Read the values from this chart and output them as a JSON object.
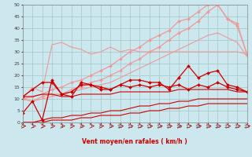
{
  "title": "",
  "xlabel": "Vent moyen/en rafales ( km/h )",
  "xlim": [
    0,
    23
  ],
  "ylim": [
    0,
    50
  ],
  "bg_color": "#cce8ee",
  "grid_color": "#aacccc",
  "series": [
    {
      "label": "pink_flat",
      "x": [
        0,
        1,
        2,
        3,
        4,
        5,
        6,
        7,
        8,
        9,
        10,
        11,
        12,
        13,
        14,
        15,
        16,
        17,
        18,
        19,
        20,
        21,
        22,
        23
      ],
      "y": [
        10,
        15,
        13,
        33,
        34,
        32,
        31,
        29,
        30,
        32,
        30,
        31,
        30,
        30,
        30,
        30,
        30,
        30,
        30,
        30,
        30,
        30,
        30,
        29
      ],
      "color": "#ee9999",
      "marker": null,
      "lw": 0.8,
      "ms": 0,
      "alpha": 1.0
    },
    {
      "label": "pink_upper1",
      "x": [
        0,
        1,
        2,
        3,
        4,
        5,
        6,
        7,
        8,
        9,
        10,
        11,
        12,
        13,
        14,
        15,
        16,
        17,
        18,
        19,
        20,
        21,
        22,
        23
      ],
      "y": [
        10,
        11,
        12,
        14,
        15,
        17,
        18,
        20,
        22,
        24,
        27,
        30,
        32,
        35,
        37,
        39,
        43,
        44,
        47,
        50,
        50,
        44,
        42,
        29
      ],
      "color": "#ee9999",
      "marker": "D",
      "lw": 0.9,
      "ms": 2.0,
      "alpha": 1.0
    },
    {
      "label": "pink_upper2",
      "x": [
        0,
        1,
        2,
        3,
        4,
        5,
        6,
        7,
        8,
        9,
        10,
        11,
        12,
        13,
        14,
        15,
        16,
        17,
        18,
        19,
        20,
        21,
        22,
        23
      ],
      "y": [
        10,
        9,
        11,
        12,
        12,
        14,
        15,
        17,
        18,
        20,
        22,
        25,
        27,
        30,
        32,
        35,
        38,
        40,
        43,
        47,
        50,
        44,
        41,
        29
      ],
      "color": "#ee9999",
      "marker": "D",
      "lw": 0.9,
      "ms": 2.0,
      "alpha": 1.0
    },
    {
      "label": "pink_lower",
      "x": [
        0,
        1,
        2,
        3,
        4,
        5,
        6,
        7,
        8,
        9,
        10,
        11,
        12,
        13,
        14,
        15,
        16,
        17,
        18,
        19,
        20,
        21,
        22,
        23
      ],
      "y": [
        10,
        9,
        10,
        11,
        12,
        13,
        14,
        15,
        16,
        17,
        19,
        21,
        23,
        25,
        27,
        29,
        31,
        33,
        35,
        37,
        38,
        36,
        34,
        28
      ],
      "color": "#ee9999",
      "marker": null,
      "lw": 0.8,
      "ms": 0,
      "alpha": 1.0
    },
    {
      "label": "red_jagged",
      "x": [
        0,
        1,
        2,
        3,
        4,
        5,
        6,
        7,
        8,
        9,
        10,
        11,
        12,
        13,
        14,
        15,
        16,
        17,
        18,
        19,
        20,
        21,
        22,
        23
      ],
      "y": [
        4,
        9,
        1,
        18,
        12,
        11,
        17,
        16,
        15,
        14,
        16,
        18,
        18,
        17,
        17,
        14,
        19,
        24,
        19,
        21,
        22,
        16,
        15,
        13
      ],
      "color": "#cc0000",
      "marker": "D",
      "lw": 0.9,
      "ms": 2.0,
      "alpha": 1.0
    },
    {
      "label": "red_mid",
      "x": [
        0,
        1,
        2,
        3,
        4,
        5,
        6,
        7,
        8,
        9,
        10,
        11,
        12,
        13,
        14,
        15,
        16,
        17,
        18,
        19,
        20,
        21,
        22,
        23
      ],
      "y": [
        11,
        14,
        17,
        17,
        12,
        13,
        16,
        16,
        14,
        14,
        16,
        15,
        16,
        15,
        16,
        15,
        16,
        14,
        16,
        15,
        17,
        15,
        14,
        13
      ],
      "color": "#cc0000",
      "marker": "D",
      "lw": 0.9,
      "ms": 2.0,
      "alpha": 1.0
    },
    {
      "label": "red_flat",
      "x": [
        0,
        1,
        2,
        3,
        4,
        5,
        6,
        7,
        8,
        9,
        10,
        11,
        12,
        13,
        14,
        15,
        16,
        17,
        18,
        19,
        20,
        21,
        22,
        23
      ],
      "y": [
        11,
        11,
        12,
        12,
        11,
        11,
        12,
        12,
        12,
        12,
        13,
        13,
        13,
        13,
        13,
        13,
        14,
        14,
        14,
        14,
        14,
        14,
        13,
        13
      ],
      "color": "#cc0000",
      "marker": null,
      "lw": 0.8,
      "ms": 0,
      "alpha": 1.0
    },
    {
      "label": "red_low1",
      "x": [
        0,
        1,
        2,
        3,
        4,
        5,
        6,
        7,
        8,
        9,
        10,
        11,
        12,
        13,
        14,
        15,
        16,
        17,
        18,
        19,
        20,
        21,
        22,
        23
      ],
      "y": [
        0,
        0,
        1,
        2,
        2,
        3,
        3,
        4,
        4,
        5,
        5,
        6,
        7,
        7,
        8,
        8,
        9,
        9,
        10,
        10,
        10,
        10,
        10,
        10
      ],
      "color": "#cc0000",
      "marker": null,
      "lw": 0.8,
      "ms": 0,
      "alpha": 1.0
    },
    {
      "label": "red_low2",
      "x": [
        0,
        1,
        2,
        3,
        4,
        5,
        6,
        7,
        8,
        9,
        10,
        11,
        12,
        13,
        14,
        15,
        16,
        17,
        18,
        19,
        20,
        21,
        22,
        23
      ],
      "y": [
        0,
        0,
        0,
        1,
        1,
        1,
        2,
        2,
        3,
        3,
        3,
        4,
        4,
        5,
        5,
        6,
        6,
        7,
        7,
        8,
        8,
        8,
        8,
        8
      ],
      "color": "#cc0000",
      "marker": null,
      "lw": 0.8,
      "ms": 0,
      "alpha": 1.0
    }
  ],
  "yticks": [
    0,
    5,
    10,
    15,
    20,
    25,
    30,
    35,
    40,
    45,
    50
  ],
  "xticks": [
    0,
    1,
    2,
    3,
    4,
    5,
    6,
    7,
    8,
    9,
    10,
    11,
    12,
    13,
    14,
    15,
    16,
    17,
    18,
    19,
    20,
    21,
    22,
    23
  ]
}
